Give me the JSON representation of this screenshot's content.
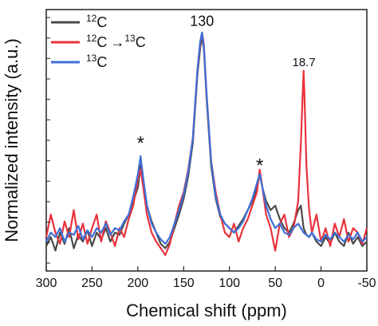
{
  "chart_data": {
    "type": "line",
    "title": "",
    "xlabel": "Chemical shift (ppm)",
    "ylabel": "Normalized intensity (a.u.)",
    "xlim": [
      300,
      -50
    ],
    "ylim": [
      0,
      1.0
    ],
    "x_reversed": true,
    "x_ticks": [
      300,
      250,
      200,
      150,
      100,
      50,
      0,
      -50
    ],
    "grid": false,
    "legend_position": "top-left",
    "legend": [
      {
        "label_base": "C",
        "label_sup": "12",
        "arrow": "",
        "label_sup2": "",
        "label_base2": "",
        "color": "#4a4a4a"
      },
      {
        "label_base": "C",
        "label_sup": "12",
        "arrow": "→",
        "label_sup2": "13",
        "label_base2": "C",
        "color": "#e8323c"
      },
      {
        "label_base": "C",
        "label_sup": "13",
        "arrow": "",
        "label_sup2": "",
        "label_base2": "",
        "color": "#3f6fd8"
      }
    ],
    "annotations": [
      {
        "text": "130",
        "x": 130,
        "y": 1.02,
        "size": 18
      },
      {
        "text": "18.7",
        "x": 18.7,
        "y": 0.84,
        "size": 15
      },
      {
        "text": "*",
        "x": 197,
        "y": 0.47,
        "size": 24
      },
      {
        "text": "*",
        "x": 67,
        "y": 0.37,
        "size": 24
      }
    ],
    "series": [
      {
        "color": "#4a4a4a",
        "x": [
          300,
          295,
          290,
          285,
          280,
          275,
          270,
          265,
          260,
          255,
          250,
          245,
          240,
          235,
          230,
          225,
          220,
          215,
          210,
          205,
          200,
          197,
          194,
          190,
          185,
          180,
          175,
          170,
          165,
          160,
          155,
          150,
          145,
          140,
          135,
          132,
          130,
          128,
          125,
          120,
          115,
          110,
          105,
          100,
          95,
          90,
          85,
          80,
          75,
          70,
          67,
          64,
          60,
          55,
          50,
          45,
          40,
          35,
          30,
          25,
          22,
          19,
          16,
          13,
          10,
          5,
          0,
          -5,
          -10,
          -15,
          -20,
          -25,
          -30,
          -35,
          -40,
          -45,
          -50
        ],
        "values": [
          0.04,
          0.08,
          0.02,
          0.1,
          0.05,
          0.12,
          0.03,
          0.09,
          0.06,
          0.11,
          0.04,
          0.1,
          0.07,
          0.12,
          0.06,
          0.1,
          0.09,
          0.14,
          0.18,
          0.24,
          0.3,
          0.4,
          0.32,
          0.22,
          0.15,
          0.1,
          0.05,
          0.03,
          0.06,
          0.12,
          0.18,
          0.25,
          0.35,
          0.5,
          0.8,
          0.92,
          0.97,
          0.92,
          0.7,
          0.4,
          0.25,
          0.17,
          0.14,
          0.12,
          0.1,
          0.13,
          0.16,
          0.2,
          0.24,
          0.3,
          0.36,
          0.3,
          0.24,
          0.2,
          0.22,
          0.16,
          0.12,
          0.1,
          0.14,
          0.2,
          0.22,
          0.12,
          0.09,
          0.08,
          0.1,
          0.06,
          0.04,
          0.08,
          0.05,
          0.1,
          0.06,
          0.04,
          0.1,
          0.05,
          0.08,
          0.04,
          0.06
        ]
      },
      {
        "color": "#e8323c",
        "x": [
          300,
          295,
          290,
          285,
          280,
          275,
          270,
          265,
          260,
          255,
          250,
          245,
          240,
          235,
          230,
          225,
          220,
          215,
          210,
          205,
          200,
          197,
          194,
          190,
          185,
          180,
          175,
          170,
          165,
          160,
          155,
          150,
          145,
          140,
          135,
          132,
          130,
          128,
          125,
          120,
          115,
          110,
          105,
          100,
          95,
          90,
          85,
          80,
          75,
          70,
          67,
          64,
          60,
          55,
          50,
          45,
          40,
          35,
          30,
          25,
          22,
          20,
          19,
          18,
          16,
          13,
          10,
          5,
          0,
          -5,
          -10,
          -15,
          -20,
          -25,
          -30,
          -35,
          -40,
          -45,
          -50
        ],
        "values": [
          0.08,
          0.18,
          0.1,
          0.05,
          0.15,
          0.08,
          0.2,
          0.07,
          0.14,
          0.05,
          0.12,
          0.18,
          0.06,
          0.15,
          0.1,
          0.04,
          0.12,
          0.08,
          0.16,
          0.22,
          0.34,
          0.38,
          0.3,
          0.18,
          0.1,
          0.06,
          0.03,
          0.0,
          0.05,
          0.14,
          0.22,
          0.28,
          0.38,
          0.52,
          0.82,
          0.94,
          0.99,
          0.94,
          0.72,
          0.42,
          0.28,
          0.18,
          0.1,
          0.08,
          0.14,
          0.06,
          0.12,
          0.16,
          0.22,
          0.28,
          0.38,
          0.3,
          0.18,
          0.12,
          0.02,
          0.14,
          0.18,
          0.08,
          0.12,
          0.24,
          0.5,
          0.72,
          0.82,
          0.7,
          0.4,
          0.2,
          0.1,
          0.18,
          0.06,
          0.12,
          0.04,
          0.14,
          0.08,
          0.16,
          0.06,
          0.12,
          0.1,
          0.05,
          0.12
        ]
      },
      {
        "color": "#3f6fd8",
        "x": [
          300,
          295,
          290,
          285,
          280,
          275,
          270,
          265,
          260,
          255,
          250,
          245,
          240,
          235,
          230,
          225,
          220,
          215,
          210,
          205,
          200,
          197,
          194,
          190,
          185,
          180,
          175,
          170,
          165,
          160,
          155,
          150,
          145,
          140,
          135,
          132,
          130,
          128,
          125,
          120,
          115,
          110,
          105,
          100,
          95,
          90,
          85,
          80,
          75,
          70,
          67,
          64,
          60,
          55,
          50,
          45,
          40,
          35,
          30,
          25,
          22,
          19,
          16,
          13,
          10,
          5,
          0,
          -5,
          -10,
          -15,
          -20,
          -25,
          -30,
          -35,
          -40,
          -45,
          -50
        ],
        "values": [
          0.06,
          0.1,
          0.08,
          0.12,
          0.06,
          0.1,
          0.09,
          0.13,
          0.07,
          0.11,
          0.08,
          0.12,
          0.1,
          0.14,
          0.09,
          0.12,
          0.11,
          0.15,
          0.18,
          0.26,
          0.36,
          0.44,
          0.34,
          0.22,
          0.14,
          0.1,
          0.07,
          0.05,
          0.08,
          0.14,
          0.2,
          0.27,
          0.37,
          0.52,
          0.82,
          0.95,
          0.99,
          0.93,
          0.72,
          0.42,
          0.26,
          0.18,
          0.14,
          0.12,
          0.1,
          0.12,
          0.15,
          0.2,
          0.25,
          0.32,
          0.36,
          0.3,
          0.22,
          0.16,
          0.12,
          0.14,
          0.1,
          0.09,
          0.12,
          0.14,
          0.12,
          0.1,
          0.09,
          0.08,
          0.1,
          0.07,
          0.06,
          0.09,
          0.07,
          0.1,
          0.08,
          0.06,
          0.09,
          0.07,
          0.1,
          0.06,
          0.08
        ]
      }
    ]
  }
}
